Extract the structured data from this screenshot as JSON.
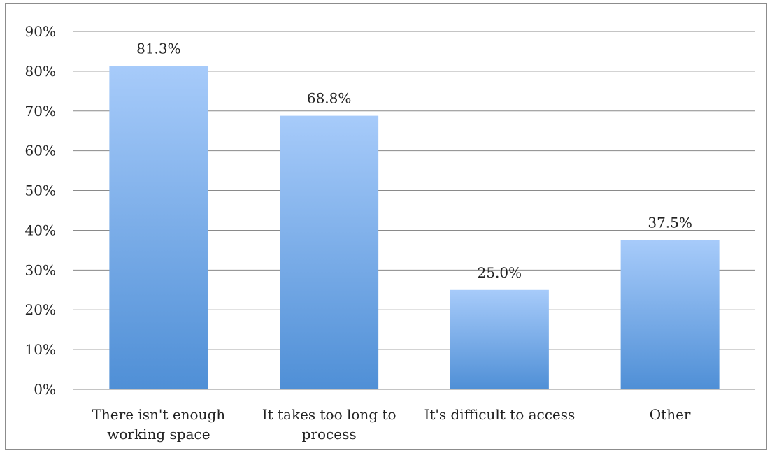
{
  "chart_data": {
    "type": "bar",
    "title": "",
    "xlabel": "",
    "ylabel": "",
    "categories": [
      [
        "There isn't enough",
        "working space"
      ],
      [
        "It takes too long to",
        "process"
      ],
      [
        "It's difficult to access"
      ],
      [
        "Other"
      ]
    ],
    "values": [
      81.3,
      68.8,
      25.0,
      37.5
    ],
    "value_labels": [
      "81.3%",
      "68.8%",
      "25.0%",
      "37.5%"
    ],
    "ylim": [
      0,
      90
    ],
    "yticks": [
      0,
      10,
      20,
      30,
      40,
      50,
      60,
      70,
      80,
      90
    ],
    "ytick_labels": [
      "0%",
      "10%",
      "20%",
      "30%",
      "40%",
      "50%",
      "60%",
      "70%",
      "80%",
      "90%"
    ],
    "grid": true,
    "legend": "none",
    "colors": {
      "bar_top": "#a7cbfa",
      "bar_bottom": "#4f8fd6",
      "grid": "#8a8a8a"
    }
  }
}
